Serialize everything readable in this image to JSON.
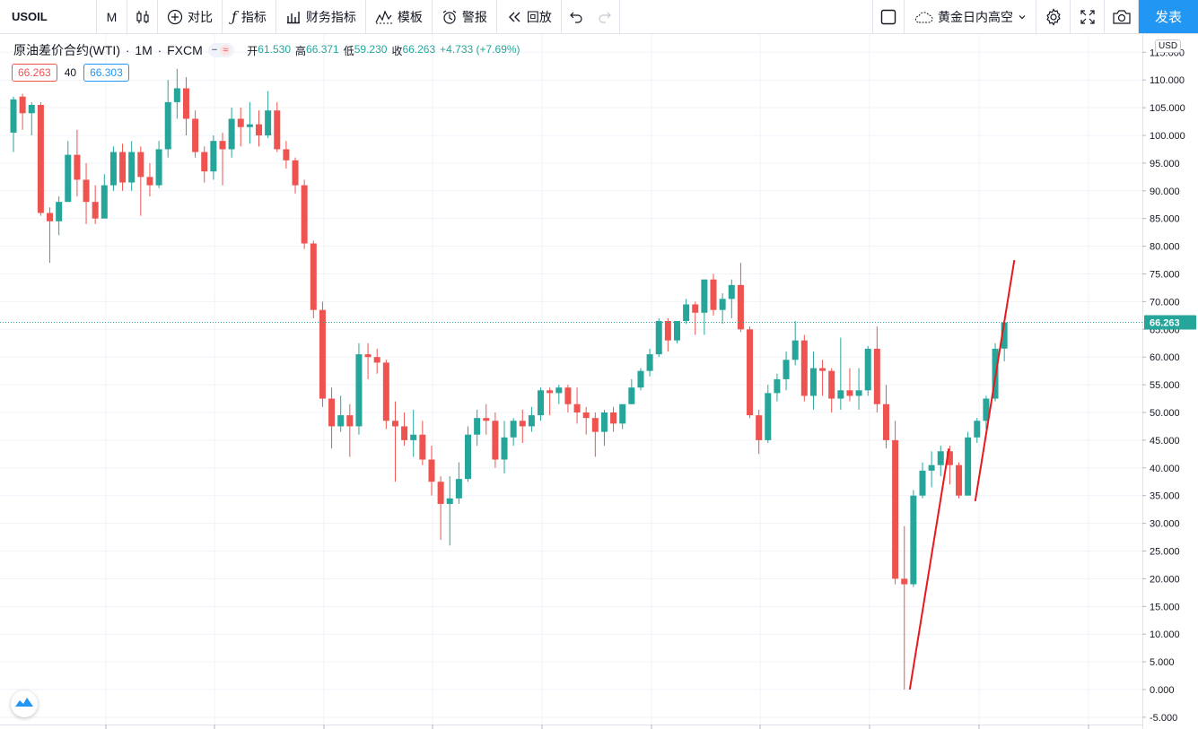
{
  "toolbar": {
    "symbol": "USOIL",
    "interval": "M",
    "compare": "对比",
    "indicators": "指标",
    "financials": "财务指标",
    "templates": "模板",
    "alert": "警报",
    "replay": "回放",
    "layout_name": "黄金日内高空",
    "publish": "发表"
  },
  "legend": {
    "title": "原油差价合约(WTI)",
    "interval": "1M",
    "exchange": "FXCM",
    "dash_glyph": "−",
    "wave_glyph": "≈",
    "open_label": "开",
    "open": "61.530",
    "high_label": "高",
    "high": "66.371",
    "low_label": "低",
    "low": "59.230",
    "close_label": "收",
    "close": "66.263",
    "change": "+4.733 (+7.69%)"
  },
  "trade": {
    "sell_price": "66.263",
    "quantity": "40",
    "buy_price": "66.303"
  },
  "price_axis": {
    "currency": "USD",
    "last_price": "66.263",
    "ticks": [
      "115.000",
      "110.000",
      "105.000",
      "100.000",
      "95.000",
      "90.000",
      "85.000",
      "80.000",
      "75.000",
      "70.000",
      "65.000",
      "60.000",
      "55.000",
      "50.000",
      "45.000",
      "40.000",
      "35.000",
      "30.000",
      "25.000",
      "20.000",
      "15.000",
      "10.000",
      "5.000",
      "0.000",
      "-5.000"
    ]
  },
  "colors": {
    "up": "#26a69a",
    "down": "#ef5350",
    "trendline": "#e8191d",
    "accent": "#2196f3"
  },
  "chart_data": {
    "type": "candlestick",
    "ylim": [
      -5,
      115
    ],
    "last_price": 66.263,
    "candles": [
      [
        100.5,
        106.5,
        97.0,
        107.0
      ],
      [
        107.0,
        104.0,
        101.0,
        107.5
      ],
      [
        104.0,
        105.5,
        100.0,
        106.0
      ],
      [
        105.5,
        86.0,
        85.5,
        106.0
      ],
      [
        86.0,
        84.5,
        77.0,
        87.0
      ],
      [
        84.5,
        88.0,
        82.0,
        89.0
      ],
      [
        88.0,
        96.5,
        88.0,
        99.0
      ],
      [
        96.5,
        92.0,
        89.0,
        101.0
      ],
      [
        92.0,
        88.0,
        84.0,
        95.0
      ],
      [
        88.0,
        85.0,
        84.0,
        91.0
      ],
      [
        85.0,
        91.0,
        85.5,
        93.0
      ],
      [
        91.0,
        97.0,
        90.0,
        98.0
      ],
      [
        97.0,
        91.5,
        90.0,
        98.5
      ],
      [
        91.5,
        97.0,
        90.0,
        99.0
      ],
      [
        97.0,
        92.5,
        85.5,
        98.0
      ],
      [
        92.5,
        91.0,
        89.0,
        95.0
      ],
      [
        91.0,
        97.5,
        90.5,
        99.0
      ],
      [
        97.5,
        106.0,
        96.0,
        110.0
      ],
      [
        106.0,
        108.5,
        103.0,
        112.0
      ],
      [
        108.5,
        103.0,
        100.0,
        110.5
      ],
      [
        103.0,
        97.0,
        96.0,
        104.5
      ],
      [
        97.0,
        93.5,
        91.5,
        98.0
      ],
      [
        93.5,
        99.0,
        92.0,
        100.0
      ],
      [
        99.0,
        97.5,
        91.0,
        100.5
      ],
      [
        97.5,
        103.0,
        96.0,
        105.0
      ],
      [
        103.0,
        101.5,
        98.0,
        105.0
      ],
      [
        101.5,
        102.0,
        98.5,
        106.0
      ],
      [
        102.0,
        100.0,
        98.0,
        104.5
      ],
      [
        100.0,
        104.5,
        99.5,
        108.0
      ],
      [
        104.5,
        97.5,
        97.0,
        106.0
      ],
      [
        97.5,
        95.5,
        94.0,
        99.0
      ],
      [
        95.5,
        91.0,
        89.5,
        96.0
      ],
      [
        91.0,
        80.5,
        79.5,
        92.0
      ],
      [
        80.5,
        68.5,
        67.0,
        81.0
      ],
      [
        68.5,
        52.5,
        51.0,
        70.0
      ],
      [
        52.5,
        47.5,
        43.5,
        54.5
      ],
      [
        47.5,
        49.5,
        46.5,
        53.0
      ],
      [
        49.5,
        47.5,
        42.0,
        51.5
      ],
      [
        47.5,
        60.5,
        46.0,
        62.5
      ],
      [
        60.5,
        60.0,
        56.0,
        62.5
      ],
      [
        60.0,
        59.0,
        57.0,
        61.5
      ],
      [
        59.0,
        48.5,
        47.0,
        59.5
      ],
      [
        48.5,
        47.5,
        37.5,
        52.0
      ],
      [
        47.5,
        45.0,
        44.0,
        50.0
      ],
      [
        45.0,
        46.0,
        42.0,
        50.5
      ],
      [
        46.0,
        41.5,
        40.5,
        48.5
      ],
      [
        41.5,
        37.5,
        35.0,
        44.0
      ],
      [
        37.5,
        33.5,
        27.0,
        38.5
      ],
      [
        33.5,
        34.5,
        26.0,
        38.5
      ],
      [
        34.5,
        38.0,
        33.5,
        41.0
      ],
      [
        38.0,
        46.0,
        37.5,
        47.5
      ],
      [
        46.0,
        49.0,
        44.0,
        50.5
      ],
      [
        49.0,
        48.5,
        46.0,
        51.5
      ],
      [
        48.5,
        41.5,
        40.0,
        50.0
      ],
      [
        41.5,
        45.5,
        39.0,
        48.5
      ],
      [
        45.5,
        48.5,
        44.0,
        49.0
      ],
      [
        48.5,
        47.5,
        44.5,
        50.5
      ],
      [
        47.5,
        49.5,
        46.5,
        51.0
      ],
      [
        49.5,
        54.0,
        48.5,
        54.5
      ],
      [
        54.0,
        53.5,
        49.5,
        54.5
      ],
      [
        53.5,
        54.5,
        51.5,
        55.0
      ],
      [
        54.5,
        51.5,
        50.0,
        55.0
      ],
      [
        51.5,
        50.0,
        48.0,
        54.5
      ],
      [
        50.0,
        49.0,
        46.0,
        51.0
      ],
      [
        49.0,
        46.5,
        42.0,
        50.0
      ],
      [
        46.5,
        50.0,
        44.0,
        50.5
      ],
      [
        50.0,
        48.0,
        46.5,
        51.0
      ],
      [
        48.0,
        51.5,
        47.0,
        51.5
      ],
      [
        51.5,
        54.5,
        51.5,
        56.0
      ],
      [
        54.5,
        57.5,
        54.0,
        58.0
      ],
      [
        57.5,
        60.5,
        56.5,
        61.5
      ],
      [
        60.5,
        66.5,
        60.0,
        67.0
      ],
      [
        66.5,
        63.0,
        61.0,
        67.0
      ],
      [
        63.0,
        66.5,
        62.5,
        66.5
      ],
      [
        66.5,
        69.5,
        66.0,
        70.5
      ],
      [
        69.5,
        68.0,
        64.0,
        70.0
      ],
      [
        68.0,
        74.0,
        64.0,
        74.0
      ],
      [
        74.0,
        68.5,
        67.5,
        75.0
      ],
      [
        68.5,
        70.5,
        66.0,
        71.5
      ],
      [
        70.5,
        73.0,
        67.0,
        74.0
      ],
      [
        73.0,
        65.0,
        64.5,
        77.0
      ],
      [
        65.0,
        49.5,
        49.0,
        65.5
      ],
      [
        49.5,
        45.0,
        42.5,
        50.5
      ],
      [
        45.0,
        53.5,
        44.5,
        55.0
      ],
      [
        53.5,
        56.0,
        52.0,
        57.0
      ],
      [
        56.0,
        59.5,
        54.0,
        61.0
      ],
      [
        59.5,
        63.0,
        58.5,
        66.5
      ],
      [
        63.0,
        53.0,
        52.0,
        64.0
      ],
      [
        53.0,
        58.0,
        50.5,
        61.0
      ],
      [
        58.0,
        57.5,
        53.0,
        59.5
      ],
      [
        57.5,
        52.5,
        50.0,
        58.0
      ],
      [
        52.5,
        54.0,
        50.5,
        63.5
      ],
      [
        54.0,
        53.0,
        52.0,
        58.0
      ],
      [
        53.0,
        54.0,
        50.5,
        58.0
      ],
      [
        54.0,
        61.5,
        53.0,
        62.0
      ],
      [
        61.5,
        51.5,
        50.0,
        65.5
      ],
      [
        51.5,
        45.0,
        43.5,
        55.0
      ],
      [
        45.0,
        20.0,
        19.0,
        48.5
      ],
      [
        20.0,
        19.0,
        0.0,
        29.5
      ],
      [
        19.0,
        35.0,
        18.5,
        36.0
      ],
      [
        35.0,
        39.5,
        34.5,
        41.0
      ],
      [
        39.5,
        40.5,
        36.5,
        43.0
      ],
      [
        40.5,
        43.0,
        38.5,
        44.0
      ],
      [
        43.0,
        40.5,
        37.0,
        44.0
      ],
      [
        40.5,
        35.0,
        34.5,
        41.0
      ],
      [
        35.0,
        45.5,
        35.0,
        46.5
      ],
      [
        45.5,
        48.5,
        44.5,
        49.0
      ],
      [
        48.5,
        52.5,
        47.0,
        53.0
      ],
      [
        52.5,
        61.5,
        52.0,
        62.5
      ],
      [
        61.53,
        66.263,
        59.23,
        66.371
      ]
    ],
    "trendlines": [
      {
        "x1": 98.6,
        "y1": 0.0,
        "x2": 102.9,
        "y2": 43.5
      },
      {
        "x1": 105.8,
        "y1": 34.0,
        "x2": 110.1,
        "y2": 77.5
      }
    ]
  }
}
